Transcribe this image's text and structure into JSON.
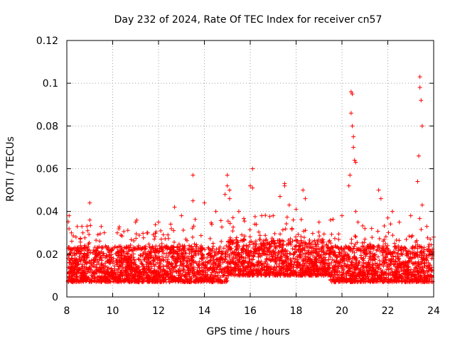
{
  "chart_data": {
    "type": "scatter",
    "title": "Day 232 of 2024, Rate Of TEC Index for receiver cn57",
    "xlabel": "GPS time / hours",
    "ylabel": "ROTI / TECUs",
    "xlim": [
      8,
      24
    ],
    "ylim": [
      0,
      0.12
    ],
    "grid": true,
    "marker": "+",
    "marker_color": "#ff0000",
    "x_ticks": [
      8,
      10,
      12,
      14,
      16,
      18,
      20,
      22,
      24
    ],
    "x_tick_labels": [
      "8",
      "10",
      "12",
      "14",
      "16",
      "18",
      "20",
      "22",
      "24"
    ],
    "y_ticks": [
      0,
      0.02,
      0.04,
      0.06,
      0.08,
      0.1,
      0.12
    ],
    "y_tick_labels": [
      "0",
      "0.02",
      "0.04",
      "0.06",
      "0.08",
      "0.1",
      "0.12"
    ],
    "series": [
      {
        "name": "ROTI",
        "description_of_bulk": "dense band 0.005-0.03 TECU/s across 8-24 h",
        "x": [
          8.1,
          8.2,
          8.4,
          8.7,
          9.0,
          9.0,
          9.5,
          10.2,
          11.0,
          11.5,
          12.0,
          12.7,
          13.0,
          13.5,
          13.5,
          14.0,
          14.5,
          14.9,
          15.0,
          15.0,
          15.1,
          15.1,
          15.5,
          16.0,
          16.1,
          16.1,
          16.5,
          17.0,
          17.3,
          17.5,
          17.5,
          17.7,
          18.0,
          18.3,
          18.4,
          19.0,
          19.5,
          20.0,
          20.3,
          20.35,
          20.4,
          20.4,
          20.45,
          20.45,
          20.5,
          20.5,
          20.55,
          20.6,
          20.6,
          20.7,
          21.0,
          21.6,
          21.7,
          22.0,
          22.2,
          22.5,
          23.0,
          23.3,
          23.35,
          23.4,
          23.4,
          23.45,
          23.5,
          23.5,
          23.7,
          24.0
        ],
        "y": [
          0.038,
          0.03,
          0.028,
          0.03,
          0.044,
          0.036,
          0.033,
          0.03,
          0.035,
          0.03,
          0.035,
          0.042,
          0.038,
          0.057,
          0.045,
          0.044,
          0.04,
          0.048,
          0.057,
          0.052,
          0.05,
          0.046,
          0.04,
          0.052,
          0.06,
          0.051,
          0.038,
          0.038,
          0.047,
          0.053,
          0.052,
          0.043,
          0.041,
          0.05,
          0.046,
          0.035,
          0.036,
          0.038,
          0.052,
          0.057,
          0.086,
          0.096,
          0.095,
          0.08,
          0.075,
          0.07,
          0.064,
          0.063,
          0.04,
          0.035,
          0.032,
          0.05,
          0.046,
          0.037,
          0.04,
          0.035,
          0.038,
          0.054,
          0.066,
          0.103,
          0.098,
          0.092,
          0.08,
          0.043,
          0.033,
          0.028
        ]
      }
    ]
  }
}
